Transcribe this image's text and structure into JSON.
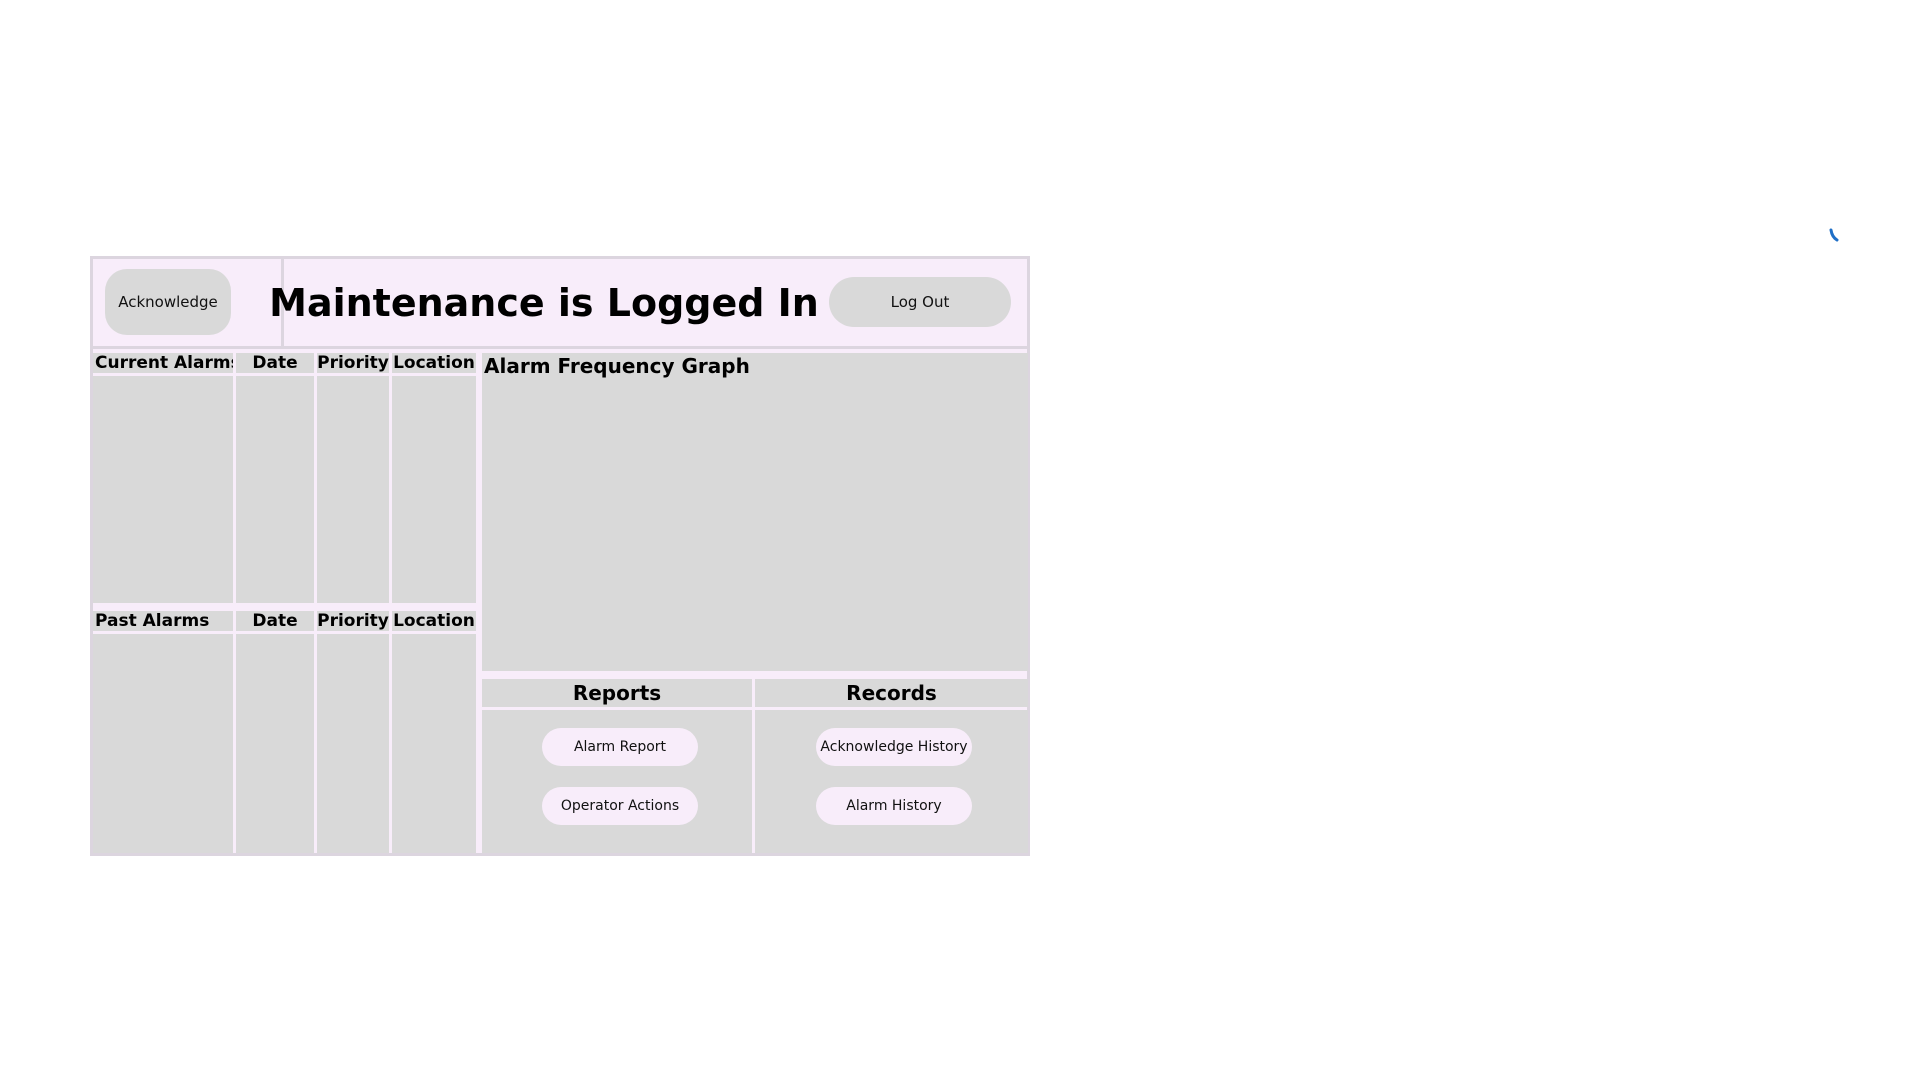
{
  "header": {
    "acknowledge_label": "Acknowledge",
    "title": "Maintenance is Logged In",
    "logout_label": "Log Out"
  },
  "current_alarms": {
    "columns": [
      "Current Alarms",
      "Date",
      "Priority",
      "Location"
    ]
  },
  "past_alarms": {
    "columns": [
      "Past Alarms",
      "Date",
      "Priority",
      "Location"
    ]
  },
  "graph": {
    "title": "Alarm Frequency Graph"
  },
  "reports": {
    "title": "Reports",
    "buttons": [
      "Alarm Report",
      "Operator Actions"
    ]
  },
  "records": {
    "title": "Records",
    "buttons": [
      "Acknowledge History",
      "Alarm History"
    ]
  },
  "colors": {
    "panel_bg": "#f8edfa",
    "border": "#dcd5df",
    "cell_gray": "#d9d9d9",
    "accent_blue": "#1f6fc7"
  }
}
